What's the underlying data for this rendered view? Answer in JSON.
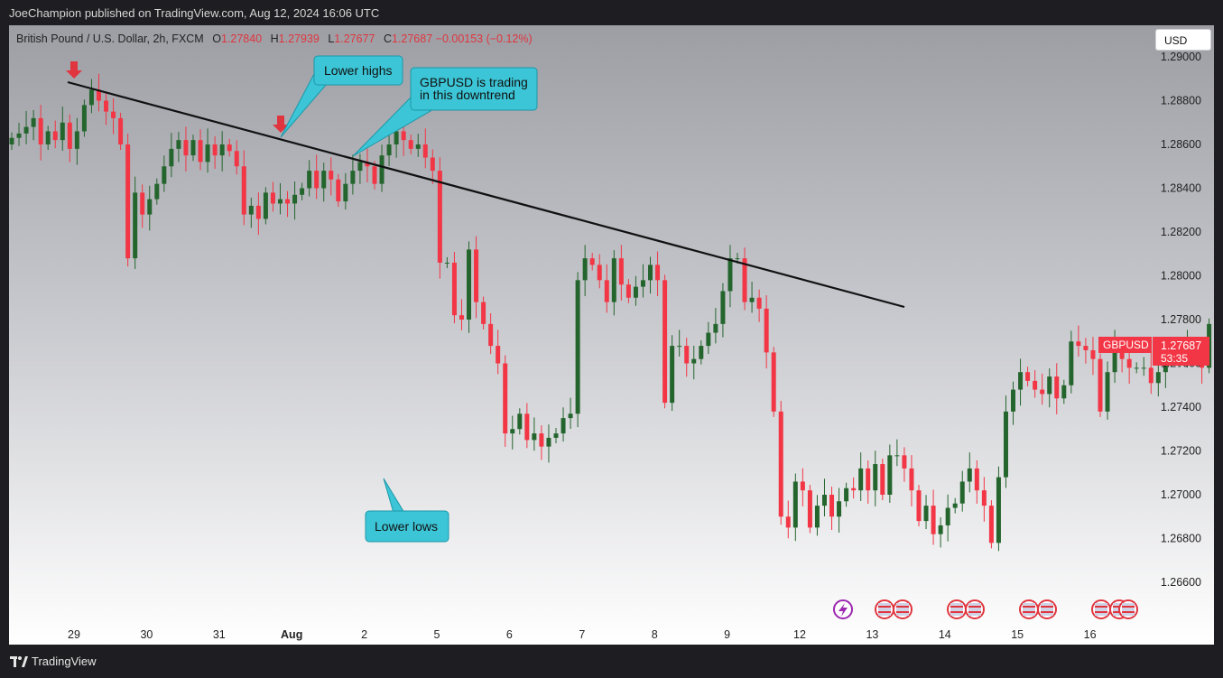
{
  "publisher": "JoeChampion published on TradingView.com, Aug 12, 2024 16:06 UTC",
  "header": {
    "instrument": "British Pound / U.S. Dollar, 2h, FXCM",
    "o_label": "O",
    "o": "1.27840",
    "h_label": "H",
    "h": "1.27939",
    "l_label": "L",
    "l": "1.27677",
    "c_label": "C",
    "c": "1.27687",
    "change": "−0.00153 (−0.12%)"
  },
  "currency_button": "USD",
  "price_tag": {
    "symbol": "GBPUSD",
    "price": "1.27687",
    "countdown": "53:35"
  },
  "colors": {
    "up": "#24652d",
    "down": "#f23645",
    "callout": "#3cc5d6",
    "tag": "#f23645"
  },
  "annotations": {
    "lower_highs": "Lower highs",
    "downtrend_line1": "GBPUSD is trading",
    "downtrend_line2": "in this downtrend",
    "lower_lows": "Lower lows"
  },
  "event_icons": [
    "gb-us-flag-icon",
    "gb-us-flag-icon",
    "gb-us-flag-icon",
    "gb-us-flag-icon",
    "lightning-icon"
  ],
  "brand": "TradingView",
  "chart_data": {
    "type": "candlestick",
    "symbol": "GBPUSD",
    "ylim": [
      1.265,
      1.291
    ],
    "yticks": [
      "1.29000",
      "1.28800",
      "1.28600",
      "1.28400",
      "1.28200",
      "1.28000",
      "1.27800",
      "1.27600",
      "1.27400",
      "1.27200",
      "1.27000",
      "1.26800",
      "1.26600"
    ],
    "xticks": [
      "29",
      "30",
      "31",
      "Aug",
      "2",
      "5",
      "6",
      "7",
      "8",
      "9",
      "12",
      "13",
      "14",
      "15",
      "16"
    ],
    "bars_per_day": 10,
    "closes": [
      1.2863,
      1.2865,
      1.2868,
      1.2872,
      1.286,
      1.2866,
      1.2862,
      1.287,
      1.2858,
      1.2866,
      1.2878,
      1.2885,
      1.288,
      1.2875,
      1.2872,
      1.286,
      1.2808,
      1.2838,
      1.2828,
      1.2835,
      1.2842,
      1.285,
      1.2858,
      1.2862,
      1.2855,
      1.2862,
      1.2852,
      1.286,
      1.2855,
      1.286,
      1.2857,
      1.285,
      1.2828,
      1.2832,
      1.2826,
      1.2838,
      1.2833,
      1.2835,
      1.2833,
      1.2837,
      1.284,
      1.2848,
      1.284,
      1.2848,
      1.2844,
      1.2834,
      1.2842,
      1.2848,
      1.2852,
      1.285,
      1.2842,
      1.2855,
      1.286,
      1.2866,
      1.2862,
      1.2858,
      1.286,
      1.2854,
      1.2848,
      1.2806,
      1.2806,
      1.2782,
      1.278,
      1.2812,
      1.2788,
      1.2778,
      1.2768,
      1.276,
      1.2728,
      1.273,
      1.2737,
      1.2725,
      1.2728,
      1.2722,
      1.2726,
      1.2728,
      1.2735,
      1.2737,
      1.2798,
      1.2808,
      1.2805,
      1.2798,
      1.2788,
      1.2808,
      1.2796,
      1.279,
      1.2795,
      1.2798,
      1.2805,
      1.2798,
      1.2742,
      1.2768,
      1.2768,
      1.276,
      1.2762,
      1.2768,
      1.2774,
      1.2778,
      1.2793,
      1.2808,
      1.2808,
      1.2788,
      1.279,
      1.2785,
      1.2765,
      1.2738,
      1.269,
      1.2685,
      1.2706,
      1.2702,
      1.2685,
      1.2695,
      1.27,
      1.269,
      1.2697,
      1.2703,
      1.2702,
      1.2712,
      1.2702,
      1.2714,
      1.27,
      1.2718,
      1.2718,
      1.2712,
      1.2702,
      1.2688,
      1.2695,
      1.2682,
      1.2686,
      1.2694,
      1.2696,
      1.2706,
      1.2712,
      1.2702,
      1.2695,
      1.2678,
      1.2708,
      1.2738,
      1.2748,
      1.2756,
      1.2752,
      1.2748,
      1.2746,
      1.2754,
      1.2744,
      1.275,
      1.277,
      1.2768,
      1.2766,
      1.2762,
      1.2738,
      1.2756,
      1.2768,
      1.2762,
      1.2758,
      1.2758,
      1.2758,
      1.2751,
      1.2756,
      1.2762,
      1.2762,
      1.2763,
      1.2768,
      1.2766,
      1.2758,
      1.2778,
      1.2775,
      1.2768
    ]
  }
}
